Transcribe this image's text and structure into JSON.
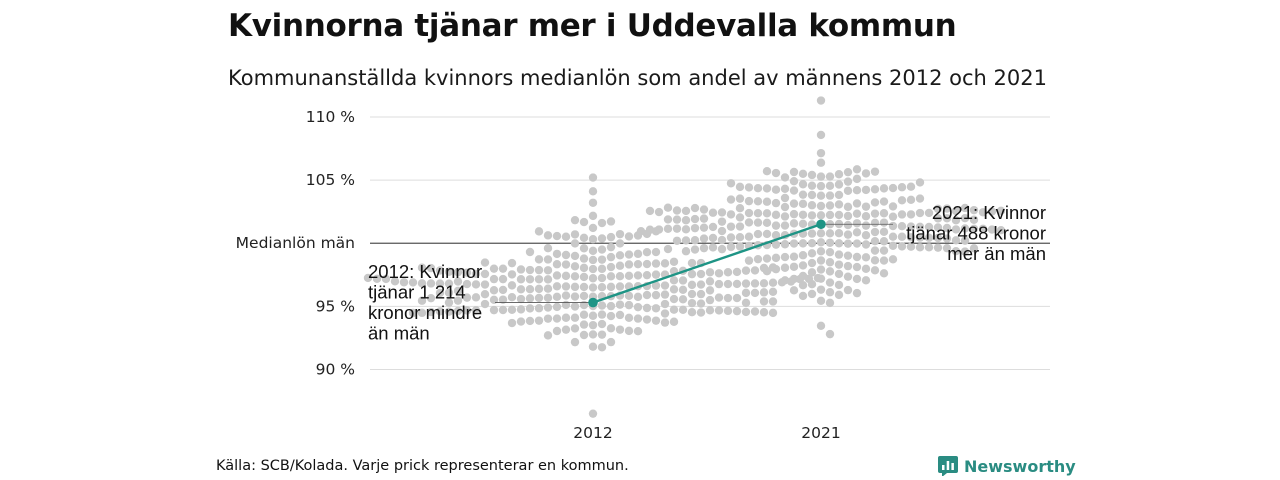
{
  "title": "Kvinnorna tjänar mer i Uddevalla kommun",
  "subtitle": "Kommunanställda kvinnors medianlön som andel av männens 2012 och 2021",
  "source": "Källa: SCB/Kolada. Varje prick representerar en kommun.",
  "brand": {
    "name": "Newsworthy",
    "icon": "newsworthy-logo-icon",
    "color": "#2a8c82"
  },
  "chart_data": {
    "type": "scatter",
    "categories": [
      "2012",
      "2021"
    ],
    "ytick_labels": [
      "90 %",
      "95 %",
      "Medianlön män",
      "105 %",
      "110 %"
    ],
    "yticks": [
      90,
      95,
      100,
      105,
      110
    ],
    "ylim": [
      86,
      111.5
    ],
    "reference_line": {
      "value": 100,
      "label": "Medianlön män"
    },
    "grid": true,
    "beeswarm": [
      {
        "category": "2012",
        "count": 290,
        "min": 86.5,
        "max": 105.2,
        "center": 96.5,
        "spread": 2.3,
        "color": "#c8c8c8"
      },
      {
        "category": "2021",
        "count": 290,
        "min": 92.8,
        "max": 111.3,
        "center": 101.5,
        "spread": 2.3,
        "color": "#c8c8c8"
      }
    ],
    "highlight": {
      "name": "Uddevalla",
      "color": "#1e9485",
      "points": [
        {
          "x": "2012",
          "y": 95.3
        },
        {
          "x": "2021",
          "y": 101.5
        }
      ]
    },
    "annotations": [
      {
        "category": "2012",
        "y": 95.3,
        "lines": [
          "2012: Kvinnor",
          "tjänar 1 214",
          "kronor mindre",
          "än män"
        ]
      },
      {
        "category": "2021",
        "y": 101.5,
        "lines": [
          "2021: Kvinnor",
          "tjänar 488 kronor",
          "mer än män"
        ]
      }
    ]
  }
}
